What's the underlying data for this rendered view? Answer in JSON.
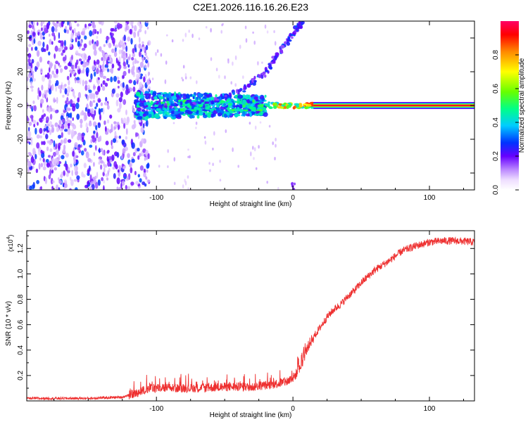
{
  "title": "C2E1.2026.116.16.26.E23",
  "chart_data": [
    {
      "type": "heatmap",
      "name": "spectrogram",
      "xlabel": "Height of straight line (km)",
      "ylabel": "Frequency (Hz)",
      "xlim": [
        -195,
        133
      ],
      "ylim": [
        -50,
        50
      ],
      "xticks": [
        -100,
        0,
        100
      ],
      "yticks": [
        -40,
        -20,
        0,
        20,
        40
      ],
      "colorbar": {
        "label": "Normalized spectral amplitude",
        "range": [
          0,
          1
        ],
        "ticks": [
          0.0,
          0.2,
          0.4,
          0.6,
          0.8
        ],
        "tick_labels": [
          "0.0",
          "0.2",
          "0.4",
          "0.6",
          "0.8"
        ]
      },
      "features": [
        {
          "name": "diffuse noise",
          "x_range": [
            -195,
            -105
          ],
          "freq_range": [
            -50,
            50
          ],
          "amplitude": 0.15
        },
        {
          "name": "broadband region",
          "x_range": [
            -115,
            -20
          ],
          "freq_range": [
            -8,
            8
          ],
          "amplitude": 0.35
        },
        {
          "name": "rising drift line",
          "points": [
            [
              -100,
              0
            ],
            [
              -60,
              2
            ],
            [
              -35,
              10
            ],
            [
              -20,
              20
            ],
            [
              -10,
              32
            ],
            [
              0,
              42
            ],
            [
              7,
              50
            ]
          ],
          "amplitude": 0.25
        },
        {
          "name": "carrier line",
          "x_range": [
            15,
            133
          ],
          "frequency": 0,
          "amplitude": 0.95
        }
      ]
    },
    {
      "type": "line",
      "name": "snr",
      "xlabel": "Height of straight line (km)",
      "ylabel": "SNR (10 * v/v)",
      "y_multiplier": "(x10",
      "y_multiplier_exp": "4",
      "y_multiplier_close": ")",
      "xlim": [
        -195,
        133
      ],
      "ylim": [
        0,
        1.34
      ],
      "xticks": [
        -100,
        0,
        100
      ],
      "yticks": [
        0.2,
        0.4,
        0.6,
        0.8,
        1.0,
        1.2
      ],
      "ytick_labels": [
        "0.2",
        "0.4",
        "0.6",
        "0.8",
        "1.0",
        "1.2"
      ],
      "color": "#ee3030",
      "series": [
        {
          "name": "SNR",
          "x": [
            -195,
            -150,
            -125,
            -115,
            -105,
            -90,
            -70,
            -50,
            -30,
            -15,
            -5,
            0,
            5,
            10,
            12,
            15,
            20,
            25,
            30,
            35,
            40,
            45,
            50,
            55,
            60,
            70,
            80,
            90,
            100,
            110,
            120,
            133
          ],
          "y": [
            0.02,
            0.02,
            0.03,
            0.06,
            0.1,
            0.1,
            0.1,
            0.11,
            0.11,
            0.13,
            0.15,
            0.18,
            0.25,
            0.4,
            0.45,
            0.5,
            0.58,
            0.66,
            0.72,
            0.76,
            0.82,
            0.87,
            0.93,
            0.98,
            1.03,
            1.1,
            1.18,
            1.22,
            1.25,
            1.26,
            1.26,
            1.25
          ]
        }
      ]
    }
  ]
}
